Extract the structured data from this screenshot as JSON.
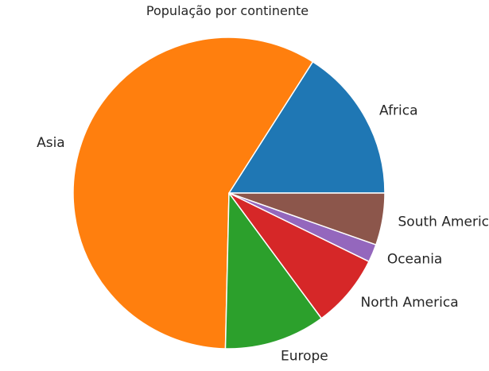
{
  "chart_data": {
    "type": "pie",
    "title": "População por continente",
    "start_angle_deg": 0,
    "direction": "counterclockwise",
    "slices": [
      {
        "label": "Africa",
        "value": 16.3,
        "color": "#1f77b4"
      },
      {
        "label": "Asia",
        "value": 59.9,
        "color": "#ff7f0e"
      },
      {
        "label": "Europe",
        "value": 10.7,
        "color": "#2ca02c"
      },
      {
        "label": "North America",
        "value": 7.8,
        "color": "#d62728"
      },
      {
        "label": "Oceania",
        "value": 1.9,
        "color": "#9467bd"
      },
      {
        "label": "South America",
        "value": 5.5,
        "color": "#8c564b"
      }
    ]
  }
}
